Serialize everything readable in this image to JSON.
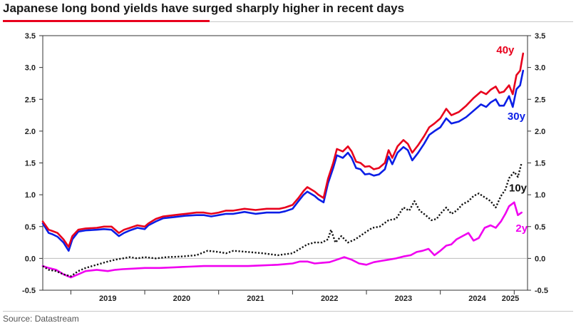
{
  "title": "Japanese long bond yields have surged sharply higher in recent days",
  "source": "Source: Datastream",
  "colors": {
    "y40": "#e8001c",
    "y30": "#0a1ee6",
    "y10": "#111111",
    "y2": "#f000f0",
    "accent": "#e8001c"
  },
  "chart_data": {
    "type": "line",
    "title": "Japanese long bond yields have surged sharply higher in recent days",
    "xlabel": "",
    "ylabel": "",
    "ylim": [
      -0.5,
      3.5
    ],
    "xlim": [
      2018.62,
      2025.18
    ],
    "y_ticks": [
      "3.5",
      "3.0",
      "2.5",
      "2.0",
      "1.5",
      "1.0",
      "0.5",
      "0.0",
      "-0.5"
    ],
    "x_ticks": [
      "2019",
      "2020",
      "2021",
      "2022",
      "2023",
      "2024",
      "2025"
    ],
    "grid": false,
    "zero_line": true,
    "series": [
      {
        "name": "40y",
        "color": "#e8001c",
        "style": "solid",
        "x": [
          2018.62,
          2018.7,
          2018.75,
          2018.82,
          2018.9,
          2018.97,
          2019.02,
          2019.1,
          2019.2,
          2019.35,
          2019.45,
          2019.55,
          2019.65,
          2019.72,
          2019.8,
          2019.9,
          2020.0,
          2020.05,
          2020.15,
          2020.25,
          2020.4,
          2020.55,
          2020.7,
          2020.8,
          2020.9,
          2021.0,
          2021.1,
          2021.2,
          2021.35,
          2021.5,
          2021.65,
          2021.75,
          2021.82,
          2021.9,
          2022.0,
          2022.08,
          2022.15,
          2022.2,
          2022.3,
          2022.35,
          2022.42,
          2022.48,
          2022.55,
          2022.6,
          2022.68,
          2022.75,
          2022.8,
          2022.86,
          2022.92,
          2022.98,
          2023.04,
          2023.1,
          2023.17,
          2023.25,
          2023.3,
          2023.35,
          2023.42,
          2023.5,
          2023.56,
          2023.62,
          2023.7,
          2023.78,
          2023.85,
          2023.92,
          2024.0,
          2024.08,
          2024.15,
          2024.25,
          2024.35,
          2024.45,
          2024.55,
          2024.62,
          2024.68,
          2024.75,
          2024.8,
          2024.86,
          2024.93,
          2024.98,
          2025.03,
          2025.08,
          2025.12
        ],
        "values": [
          0.58,
          0.45,
          0.43,
          0.4,
          0.3,
          0.18,
          0.35,
          0.45,
          0.47,
          0.48,
          0.5,
          0.5,
          0.4,
          0.45,
          0.48,
          0.52,
          0.5,
          0.55,
          0.62,
          0.66,
          0.68,
          0.7,
          0.72,
          0.72,
          0.7,
          0.72,
          0.75,
          0.75,
          0.78,
          0.76,
          0.78,
          0.78,
          0.78,
          0.8,
          0.84,
          0.95,
          1.06,
          1.12,
          1.05,
          1.0,
          0.95,
          1.25,
          1.5,
          1.72,
          1.68,
          1.76,
          1.68,
          1.52,
          1.5,
          1.44,
          1.45,
          1.4,
          1.42,
          1.5,
          1.7,
          1.58,
          1.76,
          1.86,
          1.8,
          1.66,
          1.78,
          1.92,
          2.06,
          2.12,
          2.2,
          2.35,
          2.25,
          2.3,
          2.4,
          2.52,
          2.62,
          2.58,
          2.65,
          2.7,
          2.6,
          2.62,
          2.72,
          2.58,
          2.88,
          2.95,
          3.22
        ]
      },
      {
        "name": "30y",
        "color": "#0a1ee6",
        "style": "solid",
        "x": [
          2018.62,
          2018.7,
          2018.75,
          2018.82,
          2018.9,
          2018.97,
          2019.02,
          2019.1,
          2019.2,
          2019.35,
          2019.45,
          2019.55,
          2019.65,
          2019.72,
          2019.8,
          2019.9,
          2020.0,
          2020.05,
          2020.15,
          2020.25,
          2020.4,
          2020.55,
          2020.7,
          2020.8,
          2020.9,
          2021.0,
          2021.1,
          2021.2,
          2021.35,
          2021.5,
          2021.65,
          2021.75,
          2021.82,
          2021.9,
          2022.0,
          2022.08,
          2022.15,
          2022.2,
          2022.3,
          2022.35,
          2022.42,
          2022.48,
          2022.55,
          2022.6,
          2022.68,
          2022.75,
          2022.8,
          2022.86,
          2022.92,
          2022.98,
          2023.04,
          2023.1,
          2023.17,
          2023.25,
          2023.3,
          2023.35,
          2023.42,
          2023.5,
          2023.56,
          2023.62,
          2023.7,
          2023.78,
          2023.85,
          2023.92,
          2024.0,
          2024.08,
          2024.15,
          2024.25,
          2024.35,
          2024.45,
          2024.55,
          2024.62,
          2024.68,
          2024.75,
          2024.8,
          2024.86,
          2024.93,
          2024.98,
          2025.03,
          2025.08,
          2025.12
        ],
        "values": [
          0.55,
          0.4,
          0.38,
          0.34,
          0.25,
          0.12,
          0.3,
          0.42,
          0.44,
          0.45,
          0.46,
          0.45,
          0.35,
          0.4,
          0.44,
          0.48,
          0.46,
          0.52,
          0.58,
          0.63,
          0.65,
          0.67,
          0.68,
          0.68,
          0.66,
          0.68,
          0.7,
          0.7,
          0.73,
          0.7,
          0.72,
          0.72,
          0.72,
          0.74,
          0.78,
          0.9,
          1.0,
          1.05,
          0.98,
          0.93,
          0.88,
          1.18,
          1.42,
          1.62,
          1.58,
          1.66,
          1.58,
          1.42,
          1.4,
          1.32,
          1.33,
          1.3,
          1.32,
          1.4,
          1.6,
          1.48,
          1.66,
          1.75,
          1.7,
          1.54,
          1.66,
          1.8,
          1.94,
          2.0,
          2.06,
          2.2,
          2.12,
          2.15,
          2.22,
          2.32,
          2.42,
          2.38,
          2.45,
          2.5,
          2.4,
          2.4,
          2.55,
          2.38,
          2.66,
          2.72,
          2.95
        ]
      },
      {
        "name": "10y",
        "color": "#111111",
        "style": "dotted",
        "x": [
          2018.62,
          2018.7,
          2018.8,
          2018.9,
          2019.0,
          2019.1,
          2019.2,
          2019.35,
          2019.5,
          2019.6,
          2019.7,
          2019.8,
          2019.9,
          2020.0,
          2020.15,
          2020.3,
          2020.5,
          2020.7,
          2020.85,
          2021.0,
          2021.1,
          2021.2,
          2021.4,
          2021.6,
          2021.8,
          2022.0,
          2022.1,
          2022.2,
          2022.3,
          2022.4,
          2022.48,
          2022.52,
          2022.58,
          2022.66,
          2022.75,
          2022.85,
          2022.95,
          2023.0,
          2023.08,
          2023.18,
          2023.3,
          2023.4,
          2023.5,
          2023.58,
          2023.65,
          2023.72,
          2023.8,
          2023.88,
          2023.95,
          2024.0,
          2024.08,
          2024.15,
          2024.22,
          2024.3,
          2024.38,
          2024.45,
          2024.52,
          2024.6,
          2024.68,
          2024.75,
          2024.82,
          2024.88,
          2024.93,
          2025.0,
          2025.05,
          2025.1
        ],
        "values": [
          -0.12,
          -0.18,
          -0.2,
          -0.25,
          -0.28,
          -0.2,
          -0.15,
          -0.1,
          -0.05,
          -0.02,
          0.0,
          0.02,
          0.0,
          0.02,
          0.0,
          0.02,
          0.03,
          0.05,
          0.12,
          0.1,
          0.08,
          0.12,
          0.1,
          0.08,
          0.05,
          0.08,
          0.15,
          0.22,
          0.25,
          0.25,
          0.3,
          0.45,
          0.25,
          0.35,
          0.25,
          0.3,
          0.38,
          0.42,
          0.48,
          0.5,
          0.6,
          0.62,
          0.8,
          0.75,
          0.9,
          0.75,
          0.68,
          0.6,
          0.62,
          0.7,
          0.8,
          0.7,
          0.75,
          0.85,
          0.9,
          0.98,
          1.02,
          0.96,
          0.9,
          0.8,
          0.98,
          1.08,
          1.26,
          1.36,
          1.28,
          1.5
        ]
      },
      {
        "name": "2y",
        "color": "#f000f0",
        "style": "solid",
        "x": [
          2018.62,
          2018.7,
          2018.8,
          2018.9,
          2019.0,
          2019.1,
          2019.2,
          2019.35,
          2019.5,
          2019.6,
          2019.7,
          2019.85,
          2020.0,
          2020.2,
          2020.4,
          2020.6,
          2020.8,
          2021.0,
          2021.2,
          2021.4,
          2021.6,
          2021.8,
          2022.0,
          2022.1,
          2022.2,
          2022.3,
          2022.4,
          2022.5,
          2022.6,
          2022.7,
          2022.8,
          2022.9,
          2023.0,
          2023.1,
          2023.2,
          2023.3,
          2023.4,
          2023.5,
          2023.6,
          2023.68,
          2023.76,
          2023.84,
          2023.92,
          2024.0,
          2024.08,
          2024.15,
          2024.22,
          2024.3,
          2024.38,
          2024.45,
          2024.52,
          2024.6,
          2024.68,
          2024.75,
          2024.82,
          2024.88,
          2024.93,
          2025.0,
          2025.05,
          2025.1
        ],
        "values": [
          -0.12,
          -0.15,
          -0.18,
          -0.25,
          -0.3,
          -0.25,
          -0.2,
          -0.18,
          -0.2,
          -0.18,
          -0.17,
          -0.16,
          -0.15,
          -0.15,
          -0.14,
          -0.13,
          -0.12,
          -0.12,
          -0.12,
          -0.12,
          -0.11,
          -0.1,
          -0.08,
          -0.05,
          -0.05,
          -0.08,
          -0.07,
          -0.06,
          -0.02,
          0.02,
          -0.02,
          -0.08,
          -0.1,
          -0.06,
          -0.04,
          -0.02,
          0.0,
          0.03,
          0.05,
          0.1,
          0.12,
          0.15,
          0.05,
          0.12,
          0.2,
          0.22,
          0.3,
          0.35,
          0.4,
          0.28,
          0.32,
          0.48,
          0.52,
          0.48,
          0.58,
          0.7,
          0.82,
          0.88,
          0.68,
          0.72
        ]
      }
    ]
  }
}
